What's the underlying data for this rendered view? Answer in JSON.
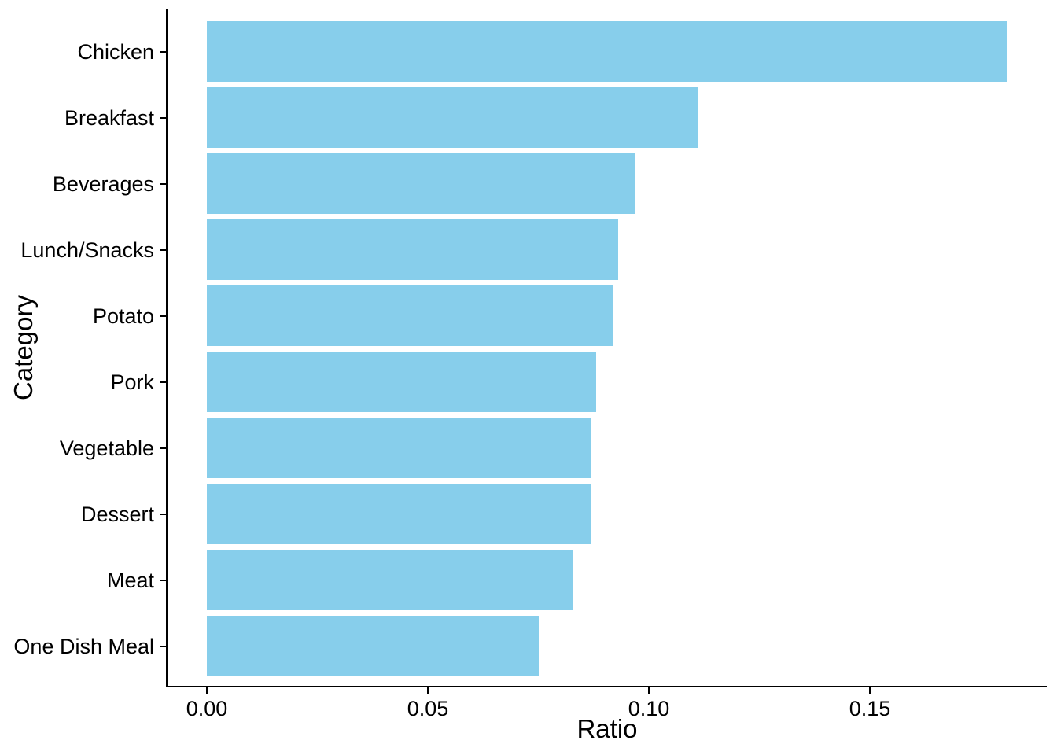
{
  "figure": {
    "background_color": "#FFFFFF"
  },
  "chart_data": {
    "type": "bar",
    "orientation": "horizontal",
    "title": "",
    "xlabel": "Ratio",
    "ylabel": "Category",
    "categories": [
      "Chicken",
      "Breakfast",
      "Beverages",
      "Lunch/Snacks",
      "Potato",
      "Pork",
      "Vegetable",
      "Dessert",
      "Meat",
      "One Dish Meal"
    ],
    "values": [
      0.181,
      0.111,
      0.097,
      0.093,
      0.092,
      0.088,
      0.087,
      0.087,
      0.083,
      0.075
    ],
    "x_ticks": [
      {
        "label": "0.00",
        "value": 0.0
      },
      {
        "label": "0.05",
        "value": 0.05
      },
      {
        "label": "0.10",
        "value": 0.1
      },
      {
        "label": "0.15",
        "value": 0.15
      }
    ],
    "xlim": [
      0,
      0.19
    ],
    "grid": false,
    "legend": "none",
    "bar_color": "#87CEEB",
    "axis_color": "#000000",
    "text_color": "#000000"
  }
}
